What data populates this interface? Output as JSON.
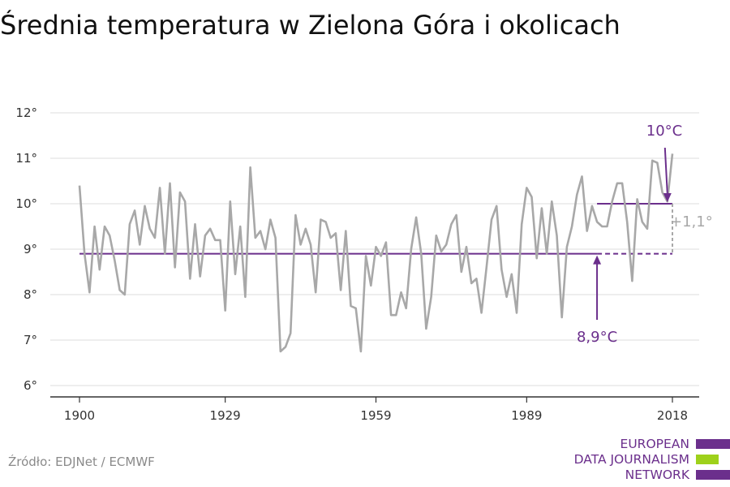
{
  "title": "Średnia temperatura w Zielona Góra i okolicach",
  "source": "Źródło: EDJNet / ECMWF",
  "logo": {
    "lines": [
      "EUROPEAN",
      "DATA JOURNALISM",
      "NETWORK"
    ],
    "colors": [
      "#6b2f8c",
      "#9ed11b",
      "#6b2f8c"
    ]
  },
  "colors": {
    "series": "#a8a8a8",
    "accent": "#6b2f8c",
    "axis": "#333333",
    "grid": "#dddddd",
    "diff": "#a8a8a8"
  },
  "chart_data": {
    "type": "line",
    "ylim": [
      6,
      12
    ],
    "xlim": [
      1900,
      2018
    ],
    "yticks": [
      6,
      7,
      8,
      9,
      10,
      11,
      12
    ],
    "ytick_labels": [
      "6°",
      "7°",
      "8°",
      "9°",
      "10°",
      "11°",
      "12°"
    ],
    "xticks": [
      1900,
      1929,
      1959,
      1989,
      2018
    ],
    "xtick_labels": [
      "1900",
      "1929",
      "1959",
      "1989",
      "2018"
    ],
    "grid": true,
    "series": [
      {
        "x": [
          1900,
          1901,
          1902,
          1903,
          1904,
          1905,
          1906,
          1907,
          1908,
          1909,
          1910,
          1911,
          1912,
          1913,
          1914,
          1915,
          1916,
          1917,
          1918,
          1919,
          1920,
          1921,
          1922,
          1923,
          1924,
          1925,
          1926,
          1927,
          1928,
          1929,
          1930,
          1931,
          1932,
          1933,
          1934,
          1935,
          1936,
          1937,
          1938,
          1939,
          1940,
          1941,
          1942,
          1943,
          1944,
          1945,
          1946,
          1947,
          1948,
          1949,
          1950,
          1951,
          1952,
          1953,
          1954,
          1955,
          1956,
          1957,
          1958,
          1959,
          1960,
          1961,
          1962,
          1963,
          1964,
          1965,
          1966,
          1967,
          1968,
          1969,
          1970,
          1971,
          1972,
          1973,
          1974,
          1975,
          1976,
          1977,
          1978,
          1979,
          1980,
          1981,
          1982,
          1983,
          1984,
          1985,
          1986,
          1987,
          1988,
          1989,
          1990,
          1991,
          1992,
          1993,
          1994,
          1995,
          1996,
          1997,
          1998,
          1999,
          2000,
          2001,
          2002,
          2003,
          2004,
          2005,
          2006,
          2007,
          2008,
          2009,
          2010,
          2011,
          2012,
          2013,
          2014,
          2015,
          2016,
          2017,
          2018
        ],
        "y": [
          10.4,
          8.9,
          8.05,
          9.5,
          8.55,
          9.5,
          9.3,
          8.75,
          8.1,
          8.0,
          9.55,
          9.85,
          9.1,
          9.95,
          9.45,
          9.25,
          10.35,
          8.9,
          10.45,
          8.6,
          10.25,
          10.05,
          8.35,
          9.55,
          8.4,
          9.3,
          9.45,
          9.2,
          9.2,
          7.65,
          10.05,
          8.45,
          9.5,
          7.95,
          10.8,
          9.25,
          9.4,
          9.0,
          9.65,
          9.25,
          6.75,
          6.85,
          7.15,
          9.75,
          9.1,
          9.45,
          9.1,
          8.05,
          9.65,
          9.6,
          9.25,
          9.35,
          8.1,
          9.4,
          7.75,
          7.7,
          6.75,
          8.85,
          8.2,
          9.05,
          8.85,
          9.15,
          7.55,
          7.55,
          8.05,
          7.7,
          9.0,
          9.7,
          8.9,
          7.25,
          7.95,
          9.3,
          8.95,
          9.1,
          9.55,
          9.75,
          8.5,
          9.05,
          8.25,
          8.35,
          7.6,
          8.6,
          9.65,
          9.95,
          8.55,
          7.95,
          8.45,
          7.6,
          9.55,
          10.35,
          10.15,
          8.8,
          9.9,
          8.9,
          10.05,
          9.3,
          7.5,
          9.05,
          9.5,
          10.2,
          10.6,
          9.4,
          9.95,
          9.6,
          9.5,
          9.5,
          10.05,
          10.45,
          10.45,
          9.6,
          8.3,
          10.1,
          9.6,
          9.45,
          10.95,
          10.9,
          10.25,
          10.05,
          11.1
        ]
      }
    ],
    "baseline": {
      "value": 8.9,
      "x_start": 1900,
      "x_solid_end": 2003,
      "x_end": 2018,
      "label": "8,9°C",
      "arrow_x": 2003
    },
    "recent": {
      "value": 10.0,
      "x_start": 2003,
      "x_end": 2018,
      "label": "10°C",
      "arrow_x": 2017
    },
    "difference": {
      "label": "+1,1°"
    }
  }
}
